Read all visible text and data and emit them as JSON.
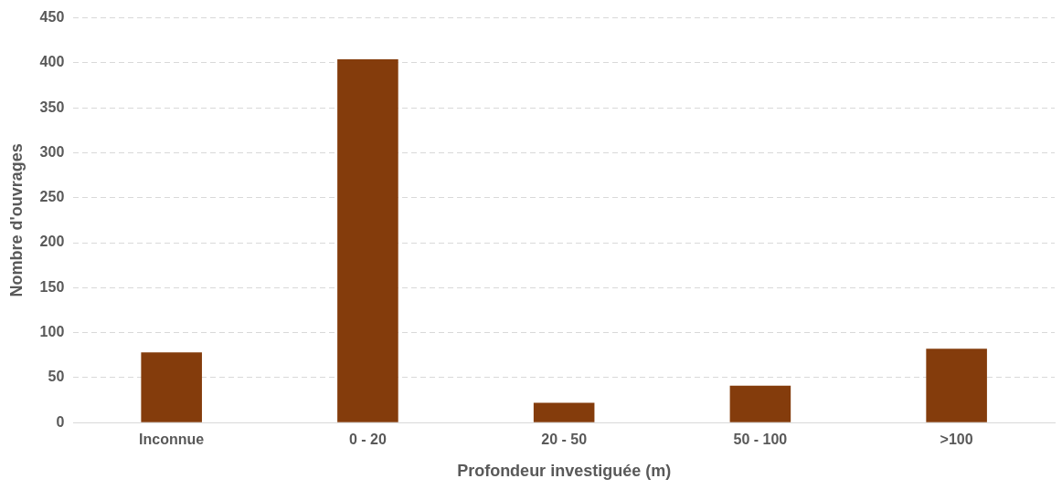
{
  "chart_data": {
    "type": "bar",
    "xlabel": "Profondeur investiguée (m)",
    "ylabel": "Nombre d'ouvrages",
    "categories": [
      "Inconnue",
      "0 - 20",
      "20 - 50",
      "50 - 100",
      ">100"
    ],
    "values": [
      78,
      404,
      22,
      41,
      82
    ],
    "color": "#843c0c",
    "ylim": [
      0,
      450
    ],
    "yticks": [
      0,
      50,
      100,
      150,
      200,
      250,
      300,
      350,
      400,
      450
    ],
    "grid": "y",
    "legend": false
  }
}
